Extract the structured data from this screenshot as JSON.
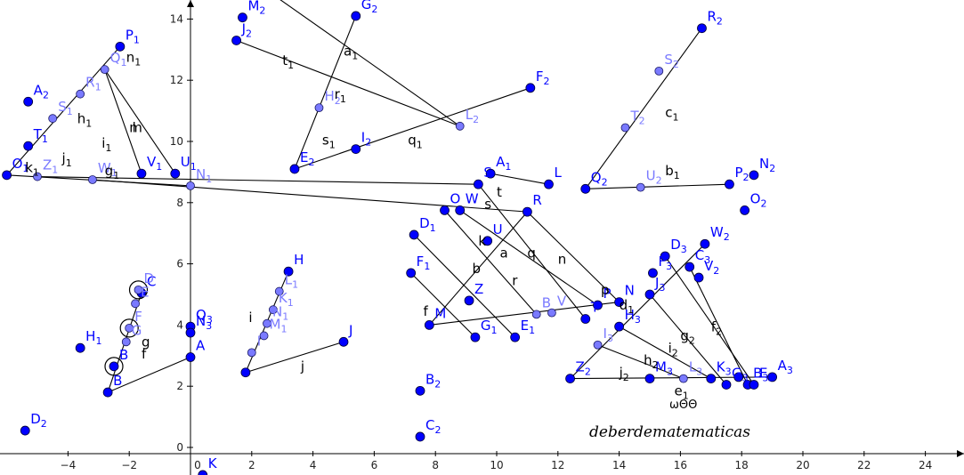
{
  "axes": {
    "x_ticks": [
      "−4",
      "−2",
      "0",
      "2",
      "4",
      "6",
      "8",
      "10",
      "12",
      "14",
      "16",
      "18",
      "20",
      "22",
      "24"
    ],
    "y_ticks": [
      "0",
      "2",
      "4",
      "6",
      "8",
      "10",
      "12",
      "14"
    ]
  },
  "watermark": "deberdematematicas",
  "extra_text": "ωΘΘ",
  "colors": {
    "free_point": "#0000ff",
    "dependent_point": "#7a7aff",
    "segment": "#000000"
  },
  "points": [
    {
      "id": "P",
      "base": "P",
      "sub": "1",
      "x": -2.3,
      "y": 13.1,
      "dep": false
    },
    {
      "id": "Q",
      "base": "Q",
      "sub": "1",
      "x": -2.8,
      "y": 12.35,
      "dep": true
    },
    {
      "id": "R",
      "base": "R",
      "sub": "1",
      "x": -3.6,
      "y": 11.55,
      "dep": true
    },
    {
      "id": "S",
      "base": "S",
      "sub": "1",
      "x": -4.5,
      "y": 10.75,
      "dep": true
    },
    {
      "id": "T",
      "base": "T",
      "sub": "1",
      "x": -5.3,
      "y": 9.85,
      "dep": false
    },
    {
      "id": "A2",
      "base": "A",
      "sub": "2",
      "x": -5.3,
      "y": 11.3,
      "dep": false
    },
    {
      "id": "O1",
      "base": "O",
      "sub": "1",
      "x": -6.0,
      "y": 8.9,
      "dep": false
    },
    {
      "id": "Z1",
      "base": "Z",
      "sub": "1",
      "x": -5.0,
      "y": 8.85,
      "dep": true
    },
    {
      "id": "W1",
      "base": "W",
      "sub": "1",
      "x": -3.2,
      "y": 8.75,
      "dep": true
    },
    {
      "id": "V1",
      "base": "V",
      "sub": "1",
      "x": -1.6,
      "y": 8.95,
      "dep": false
    },
    {
      "id": "U1",
      "base": "U",
      "sub": "1",
      "x": -0.5,
      "y": 8.95,
      "dep": false
    },
    {
      "id": "N1",
      "base": "N",
      "sub": "1",
      "x": 0.0,
      "y": 8.55,
      "dep": true
    },
    {
      "id": "M2",
      "base": "M",
      "sub": "2",
      "x": 1.7,
      "y": 14.05,
      "dep": false
    },
    {
      "id": "J2",
      "base": "J",
      "sub": "2",
      "x": 1.5,
      "y": 13.3,
      "dep": false
    },
    {
      "id": "G2",
      "base": "G",
      "sub": "2",
      "x": 5.4,
      "y": 14.1,
      "dep": false
    },
    {
      "id": "H2",
      "base": "H",
      "sub": "2",
      "x": 4.2,
      "y": 11.1,
      "dep": true
    },
    {
      "id": "L2",
      "base": "L",
      "sub": "2",
      "x": 8.8,
      "y": 10.5,
      "dep": true
    },
    {
      "id": "F2",
      "base": "F",
      "sub": "2",
      "x": 11.1,
      "y": 11.75,
      "dep": false
    },
    {
      "id": "E2",
      "base": "E",
      "sub": "2",
      "x": 3.4,
      "y": 9.1,
      "dep": false
    },
    {
      "id": "I2",
      "base": "I",
      "sub": "2",
      "x": 5.4,
      "y": 9.75,
      "dep": false
    },
    {
      "id": "R2",
      "base": "R",
      "sub": "2",
      "x": 16.7,
      "y": 13.7,
      "dep": false
    },
    {
      "id": "S2",
      "base": "S",
      "sub": "2",
      "x": 15.3,
      "y": 12.3,
      "dep": true
    },
    {
      "id": "T2",
      "base": "T",
      "sub": "2",
      "x": 14.2,
      "y": 10.45,
      "dep": true
    },
    {
      "id": "Q2",
      "base": "Q",
      "sub": "2",
      "x": 12.9,
      "y": 8.45,
      "dep": false
    },
    {
      "id": "U2",
      "base": "U",
      "sub": "2",
      "x": 14.7,
      "y": 8.5,
      "dep": true
    },
    {
      "id": "P2",
      "base": "P",
      "sub": "2",
      "x": 17.6,
      "y": 8.6,
      "dep": false
    },
    {
      "id": "N2",
      "base": "N",
      "sub": "2",
      "x": 18.4,
      "y": 8.9,
      "dep": false
    },
    {
      "id": "O2",
      "base": "O",
      "sub": "2",
      "x": 18.1,
      "y": 7.75,
      "dep": false
    },
    {
      "id": "A1",
      "base": "A",
      "sub": "1",
      "x": 9.8,
      "y": 8.95,
      "dep": false
    },
    {
      "id": "L",
      "base": "L",
      "sub": "",
      "x": 11.7,
      "y": 8.6,
      "dep": false
    },
    {
      "id": "S",
      "base": "S",
      "sub": "",
      "x": 9.4,
      "y": 8.6,
      "dep": false
    },
    {
      "id": "W",
      "base": "W",
      "sub": "",
      "x": 8.8,
      "y": 7.75,
      "dep": false
    },
    {
      "id": "O",
      "base": "O",
      "sub": "",
      "x": 8.3,
      "y": 7.75,
      "dep": false
    },
    {
      "id": "R",
      "base": "R",
      "sub": "",
      "x": 11.0,
      "y": 7.7,
      "dep": false
    },
    {
      "id": "D1",
      "base": "D",
      "sub": "1",
      "x": 7.3,
      "y": 6.95,
      "dep": false
    },
    {
      "id": "U",
      "base": "U",
      "sub": "",
      "x": 9.7,
      "y": 6.75,
      "dep": false
    },
    {
      "id": "F1",
      "base": "F",
      "sub": "1",
      "x": 7.2,
      "y": 5.7,
      "dep": false
    },
    {
      "id": "Z",
      "base": "Z",
      "sub": "",
      "x": 9.1,
      "y": 4.8,
      "dep": false
    },
    {
      "id": "M",
      "base": "M",
      "sub": "",
      "x": 7.8,
      "y": 4.0,
      "dep": false
    },
    {
      "id": "G1",
      "base": "G",
      "sub": "1",
      "x": 9.3,
      "y": 3.6,
      "dep": false
    },
    {
      "id": "E1",
      "base": "E",
      "sub": "1",
      "x": 10.6,
      "y": 3.6,
      "dep": false
    },
    {
      "id": "B",
      "base": "B",
      "sub": "",
      "x": 11.3,
      "y": 4.35,
      "dep": true
    },
    {
      "id": "V",
      "base": "V",
      "sub": "",
      "x": 11.8,
      "y": 4.4,
      "dep": true
    },
    {
      "id": "T",
      "base": "T",
      "sub": "",
      "x": 12.9,
      "y": 4.2,
      "dep": false
    },
    {
      "id": "Pq",
      "base": "P",
      "sub": "",
      "x": 13.3,
      "y": 4.65,
      "dep": false
    },
    {
      "id": "N",
      "base": "N",
      "sub": "",
      "x": 14.0,
      "y": 4.75,
      "dep": false
    },
    {
      "id": "D3",
      "base": "D",
      "sub": "3",
      "x": 15.5,
      "y": 6.25,
      "dep": false
    },
    {
      "id": "W2",
      "base": "W",
      "sub": "2",
      "x": 16.8,
      "y": 6.65,
      "dep": false
    },
    {
      "id": "F3",
      "base": "F",
      "sub": "3",
      "x": 15.1,
      "y": 5.7,
      "dep": false
    },
    {
      "id": "C3",
      "base": "C",
      "sub": "3",
      "x": 16.3,
      "y": 5.9,
      "dep": false
    },
    {
      "id": "V2",
      "base": "V",
      "sub": "2",
      "x": 16.6,
      "y": 5.55,
      "dep": false
    },
    {
      "id": "J3",
      "base": "J",
      "sub": "3",
      "x": 15.0,
      "y": 5.0,
      "dep": false
    },
    {
      "id": "H3",
      "base": "H",
      "sub": "3",
      "x": 14.0,
      "y": 3.95,
      "dep": false
    },
    {
      "id": "I3",
      "base": "I",
      "sub": "3",
      "x": 13.3,
      "y": 3.35,
      "dep": true
    },
    {
      "id": "Z2",
      "base": "Z",
      "sub": "2",
      "x": 12.4,
      "y": 2.25,
      "dep": false
    },
    {
      "id": "M3",
      "base": "M",
      "sub": "3",
      "x": 15.0,
      "y": 2.25,
      "dep": false
    },
    {
      "id": "L3",
      "base": "L",
      "sub": "3",
      "x": 16.1,
      "y": 2.25,
      "dep": true
    },
    {
      "id": "K3",
      "base": "K",
      "sub": "3",
      "x": 17.0,
      "y": 2.25,
      "dep": false
    },
    {
      "id": "G3",
      "base": "G",
      "sub": "3",
      "x": 17.5,
      "y": 2.05,
      "dep": false
    },
    {
      "id": "D1b",
      "base": "",
      "sub": "",
      "x": 17.9,
      "y": 2.3,
      "dep": false
    },
    {
      "id": "B3",
      "base": "B",
      "sub": "3",
      "x": 18.2,
      "y": 2.05,
      "dep": false
    },
    {
      "id": "E3",
      "base": "E",
      "sub": "3",
      "x": 18.4,
      "y": 2.05,
      "dep": false
    },
    {
      "id": "A3",
      "base": "A",
      "sub": "3",
      "x": 19.0,
      "y": 2.3,
      "dep": false
    },
    {
      "id": "H",
      "base": "H",
      "sub": "",
      "x": 3.2,
      "y": 5.75,
      "dep": false
    },
    {
      "id": "L1",
      "base": "L",
      "sub": "1",
      "x": 2.9,
      "y": 5.1,
      "dep": true
    },
    {
      "id": "K1",
      "base": "K",
      "sub": "1",
      "x": 2.7,
      "y": 4.5,
      "dep": true
    },
    {
      "id": "Nm",
      "base": "N",
      "sub": "1",
      "x": 2.5,
      "y": 4.05,
      "dep": true
    },
    {
      "id": "M1",
      "base": "M",
      "sub": "1",
      "x": 2.4,
      "y": 3.65,
      "dep": true
    },
    {
      "id": "I",
      "base": "I",
      "sub": "",
      "x": 2.0,
      "y": 3.1,
      "dep": true
    },
    {
      "id": "Jp",
      "base": "",
      "sub": "",
      "x": 1.8,
      "y": 2.45,
      "dep": false
    },
    {
      "id": "J",
      "base": "J",
      "sub": "",
      "x": 5.0,
      "y": 3.45,
      "dep": false
    },
    {
      "id": "C",
      "base": "C",
      "sub": "",
      "x": -1.6,
      "y": 5.05,
      "dep": false
    },
    {
      "id": "D",
      "base": "D",
      "sub": "",
      "x": -1.7,
      "y": 5.15,
      "dep": true
    },
    {
      "id": "E",
      "base": "E",
      "sub": "",
      "x": -1.8,
      "y": 4.7,
      "dep": true
    },
    {
      "id": "F",
      "base": "F",
      "sub": "",
      "x": -2.0,
      "y": 3.9,
      "dep": true
    },
    {
      "id": "G",
      "base": "G",
      "sub": "",
      "x": -2.1,
      "y": 3.45,
      "dep": true
    },
    {
      "id": "Bb",
      "base": "B",
      "sub": "",
      "x": -2.5,
      "y": 2.65,
      "dep": false
    },
    {
      "id": "Bc",
      "base": "B",
      "sub": "",
      "x": -2.7,
      "y": 1.8,
      "dep": false
    },
    {
      "id": "A",
      "base": "A",
      "sub": "",
      "x": 0.0,
      "y": 2.95,
      "dep": false
    },
    {
      "id": "Q3",
      "base": "Q",
      "sub": "3",
      "x": 0.0,
      "y": 3.95,
      "dep": false
    },
    {
      "id": "N3",
      "base": "N",
      "sub": "3",
      "x": 0.0,
      "y": 3.75,
      "dep": false
    },
    {
      "id": "H1",
      "base": "H",
      "sub": "1",
      "x": -3.6,
      "y": 3.25,
      "dep": false
    },
    {
      "id": "D2",
      "base": "D",
      "sub": "2",
      "x": -5.4,
      "y": 0.55,
      "dep": false
    },
    {
      "id": "B2",
      "base": "B",
      "sub": "2",
      "x": 7.5,
      "y": 1.85,
      "dep": false
    },
    {
      "id": "C2",
      "base": "C",
      "sub": "2",
      "x": 7.5,
      "y": 0.35,
      "dep": false
    },
    {
      "id": "K",
      "base": "K",
      "sub": "",
      "x": 0.4,
      "y": -0.9,
      "dep": false
    }
  ],
  "segments": [
    [
      "P",
      "O1"
    ],
    [
      "O1",
      "N1"
    ],
    [
      "Q",
      "V1"
    ],
    [
      "R",
      "W1"
    ],
    [
      "S",
      "Z1"
    ],
    [
      "Q",
      "U1"
    ],
    [
      "J2",
      "L2"
    ],
    [
      "E2",
      "G2"
    ],
    [
      "E2",
      "F2"
    ],
    [
      "Q2",
      "R2"
    ],
    [
      "Q2",
      "P2"
    ],
    [
      "M",
      "R"
    ],
    [
      "M",
      "N"
    ],
    [
      "S",
      "T"
    ],
    [
      "A1",
      "L"
    ],
    [
      "W",
      "Pq"
    ],
    [
      "O",
      "B"
    ],
    [
      "D1",
      "E1"
    ],
    [
      "F1",
      "G1"
    ],
    [
      "R",
      "N"
    ],
    [
      "Z2",
      "W2"
    ],
    [
      "Z2",
      "A3"
    ],
    [
      "J3",
      "G3"
    ],
    [
      "C3",
      "B3"
    ],
    [
      "D3",
      "E3"
    ],
    [
      "H3",
      "K3"
    ],
    [
      "I3",
      "L3"
    ],
    [
      "Jp",
      "H"
    ],
    [
      "Jp",
      "J"
    ],
    [
      "Bc",
      "A"
    ],
    [
      "Bc",
      "C"
    ]
  ],
  "circles": [
    "D",
    "F",
    "Bb"
  ],
  "seg_labels": [
    {
      "t": "n",
      "s": "1",
      "x": -2.1,
      "y": 12.6
    },
    {
      "t": "h",
      "s": "1",
      "x": -3.7,
      "y": 10.6
    },
    {
      "t": "i",
      "s": "1",
      "x": -2.9,
      "y": 9.8
    },
    {
      "t": "j",
      "s": "1",
      "x": -4.2,
      "y": 9.3
    },
    {
      "t": "g",
      "s": "1",
      "x": -2.8,
      "y": 8.9
    },
    {
      "t": "k",
      "s": "1",
      "x": -5.4,
      "y": 9.0
    },
    {
      "t": "m",
      "s": "",
      "x": -2.0,
      "y": 10.3
    },
    {
      "t": "l",
      "s": "",
      "x": -1.9,
      "y": 10.3
    },
    {
      "t": "t",
      "s": "1",
      "x": 3.0,
      "y": 12.5
    },
    {
      "t": "a",
      "s": "1",
      "x": 5.0,
      "y": 12.8
    },
    {
      "t": "r",
      "s": "1",
      "x": 4.7,
      "y": 11.4
    },
    {
      "t": "s",
      "s": "1",
      "x": 4.3,
      "y": 9.9
    },
    {
      "t": "q",
      "s": "1",
      "x": 7.1,
      "y": 9.9
    },
    {
      "t": "c",
      "s": "1",
      "x": 15.5,
      "y": 10.8
    },
    {
      "t": "b",
      "s": "1",
      "x": 15.5,
      "y": 8.9
    },
    {
      "t": "t",
      "s": "",
      "x": 10.0,
      "y": 8.2
    },
    {
      "t": "s",
      "s": "",
      "x": 9.6,
      "y": 7.8
    },
    {
      "t": "k",
      "s": "",
      "x": 9.4,
      "y": 6.6
    },
    {
      "t": "a",
      "s": "",
      "x": 10.1,
      "y": 6.2
    },
    {
      "t": "q",
      "s": "",
      "x": 11.0,
      "y": 6.2
    },
    {
      "t": "n",
      "s": "",
      "x": 12.0,
      "y": 6.0
    },
    {
      "t": "b",
      "s": "",
      "x": 9.2,
      "y": 5.7
    },
    {
      "t": "r",
      "s": "",
      "x": 10.5,
      "y": 5.3
    },
    {
      "t": "f",
      "s": "",
      "x": 7.6,
      "y": 4.3
    },
    {
      "t": "p",
      "s": "",
      "x": 13.4,
      "y": 5.0
    },
    {
      "t": "d",
      "s": "1",
      "x": 14.0,
      "y": 4.5
    },
    {
      "t": "g",
      "s": "2",
      "x": 16.0,
      "y": 3.5
    },
    {
      "t": "f",
      "s": "2",
      "x": 17.0,
      "y": 3.8
    },
    {
      "t": "i",
      "s": "2",
      "x": 15.6,
      "y": 3.1
    },
    {
      "t": "h",
      "s": "2",
      "x": 14.8,
      "y": 2.7
    },
    {
      "t": "j",
      "s": "2",
      "x": 14.0,
      "y": 2.3
    },
    {
      "t": "e",
      "s": "1",
      "x": 15.8,
      "y": 1.7
    },
    {
      "t": "i",
      "s": "",
      "x": 1.9,
      "y": 4.1
    },
    {
      "t": "j",
      "s": "",
      "x": 3.6,
      "y": 2.5
    },
    {
      "t": "g",
      "s": "",
      "x": -1.6,
      "y": 3.3
    },
    {
      "t": "f",
      "s": "",
      "x": -1.6,
      "y": 2.9
    }
  ]
}
